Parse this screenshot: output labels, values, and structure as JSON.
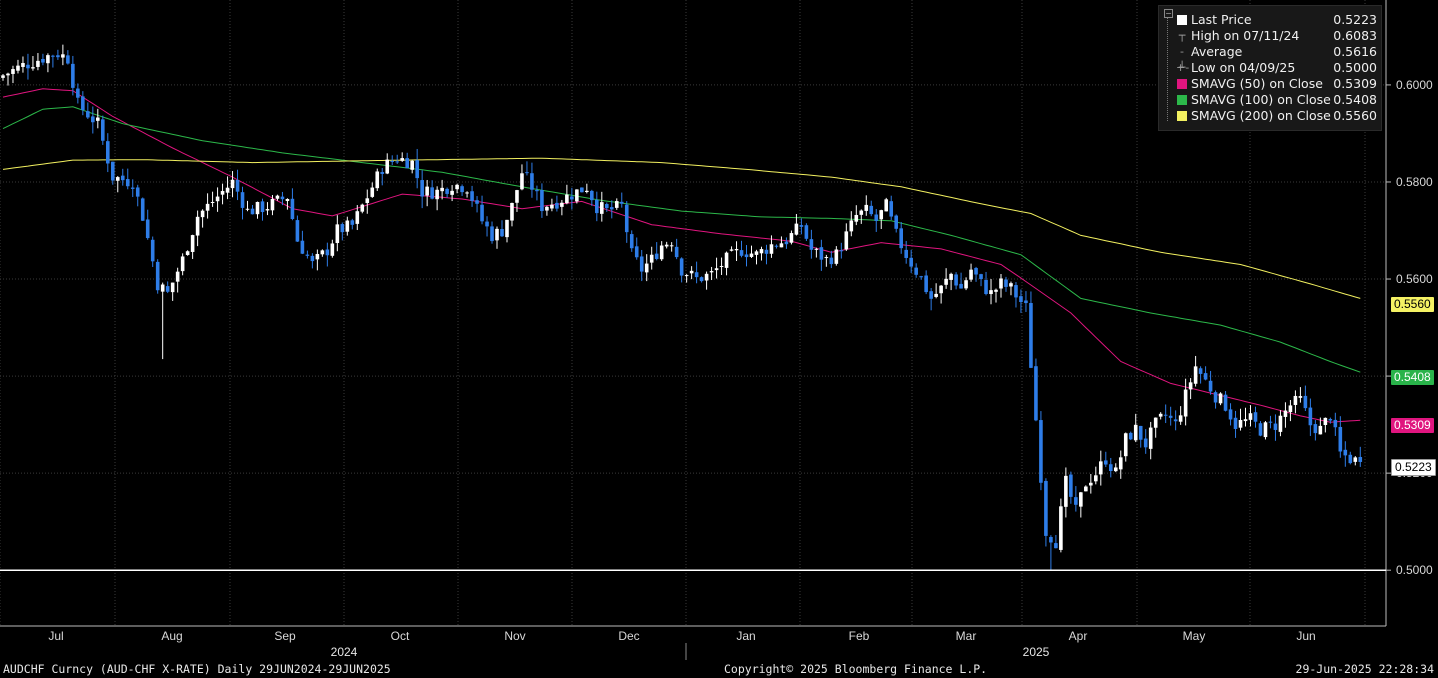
{
  "chart_data": {
    "type": "candlestick",
    "title": "AUDCHF Curncy (AUD-CHF X-RATE)",
    "period": "Daily 29JUN2024-29JUN2025",
    "ylim": [
      0.4885,
      0.6175
    ],
    "y_ticks": [
      "0.6000",
      "0.5800",
      "0.5600",
      "0.5400",
      "0.5200",
      "0.5000"
    ],
    "y_tick_values": [
      0.6,
      0.58,
      0.56,
      0.54,
      0.52,
      0.5
    ],
    "month_labels": [
      "Jul",
      "Aug",
      "Sep",
      "Oct",
      "Nov",
      "Dec",
      "Jan",
      "Feb",
      "Mar",
      "Apr",
      "May",
      "Jun"
    ],
    "year_labels": [
      "2024",
      "2025"
    ],
    "anchors": [
      {
        "t": 0,
        "v": 0.602
      },
      {
        "t": 4,
        "v": 0.604
      },
      {
        "t": 9,
        "v": 0.606
      },
      {
        "t": 11,
        "v": 0.6065
      },
      {
        "t": 13,
        "v": 0.6055
      },
      {
        "t": 15,
        "v": 0.596
      },
      {
        "t": 19,
        "v": 0.592
      },
      {
        "t": 22,
        "v": 0.581
      },
      {
        "t": 26,
        "v": 0.58
      },
      {
        "t": 28,
        "v": 0.573
      },
      {
        "t": 31,
        "v": 0.559
      },
      {
        "t": 33,
        "v": 0.557
      },
      {
        "t": 36,
        "v": 0.564
      },
      {
        "t": 39,
        "v": 0.573
      },
      {
        "t": 42,
        "v": 0.576
      },
      {
        "t": 46,
        "v": 0.58
      },
      {
        "t": 49,
        "v": 0.574
      },
      {
        "t": 53,
        "v": 0.575
      },
      {
        "t": 57,
        "v": 0.577
      },
      {
        "t": 59,
        "v": 0.568
      },
      {
        "t": 62,
        "v": 0.563
      },
      {
        "t": 65,
        "v": 0.566
      },
      {
        "t": 67,
        "v": 0.57
      },
      {
        "t": 70,
        "v": 0.571
      },
      {
        "t": 73,
        "v": 0.577
      },
      {
        "t": 76,
        "v": 0.583
      },
      {
        "t": 79,
        "v": 0.585
      },
      {
        "t": 82,
        "v": 0.584
      },
      {
        "t": 84,
        "v": 0.578
      },
      {
        "t": 87,
        "v": 0.578
      },
      {
        "t": 90,
        "v": 0.5795
      },
      {
        "t": 93,
        "v": 0.579
      },
      {
        "t": 96,
        "v": 0.572
      },
      {
        "t": 98,
        "v": 0.569
      },
      {
        "t": 100,
        "v": 0.57
      },
      {
        "t": 102,
        "v": 0.575
      },
      {
        "t": 104,
        "v": 0.582
      },
      {
        "t": 106,
        "v": 0.579
      },
      {
        "t": 108,
        "v": 0.575
      },
      {
        "t": 111,
        "v": 0.576
      },
      {
        "t": 114,
        "v": 0.5775
      },
      {
        "t": 117,
        "v": 0.579
      },
      {
        "t": 119,
        "v": 0.575
      },
      {
        "t": 121,
        "v": 0.574
      },
      {
        "t": 124,
        "v": 0.575
      },
      {
        "t": 126,
        "v": 0.565
      },
      {
        "t": 128,
        "v": 0.562
      },
      {
        "t": 130,
        "v": 0.564
      },
      {
        "t": 132,
        "v": 0.567
      },
      {
        "t": 134,
        "v": 0.568
      },
      {
        "t": 136,
        "v": 0.562
      },
      {
        "t": 139,
        "v": 0.56
      },
      {
        "t": 142,
        "v": 0.561
      },
      {
        "t": 145,
        "v": 0.564
      },
      {
        "t": 148,
        "v": 0.566
      },
      {
        "t": 151,
        "v": 0.565
      },
      {
        "t": 154,
        "v": 0.567
      },
      {
        "t": 157,
        "v": 0.568
      },
      {
        "t": 160,
        "v": 0.571
      },
      {
        "t": 162,
        "v": 0.566
      },
      {
        "t": 165,
        "v": 0.564
      },
      {
        "t": 167,
        "v": 0.565
      },
      {
        "t": 169,
        "v": 0.569
      },
      {
        "t": 171,
        "v": 0.573
      },
      {
        "t": 173,
        "v": 0.574
      },
      {
        "t": 175,
        "v": 0.572
      },
      {
        "t": 177,
        "v": 0.575
      },
      {
        "t": 179,
        "v": 0.569
      },
      {
        "t": 181,
        "v": 0.565
      },
      {
        "t": 184,
        "v": 0.56
      },
      {
        "t": 186,
        "v": 0.556
      },
      {
        "t": 188,
        "v": 0.558
      },
      {
        "t": 190,
        "v": 0.561
      },
      {
        "t": 192,
        "v": 0.558
      },
      {
        "t": 194,
        "v": 0.562
      },
      {
        "t": 196,
        "v": 0.559
      },
      {
        "t": 198,
        "v": 0.557
      },
      {
        "t": 200,
        "v": 0.559
      },
      {
        "t": 202,
        "v": 0.558
      },
      {
        "t": 205,
        "v": 0.554
      },
      {
        "t": 207,
        "v": 0.531
      },
      {
        "t": 209,
        "v": 0.508
      },
      {
        "t": 211,
        "v": 0.506
      },
      {
        "t": 213,
        "v": 0.518
      },
      {
        "t": 215,
        "v": 0.512
      },
      {
        "t": 217,
        "v": 0.518
      },
      {
        "t": 219,
        "v": 0.52
      },
      {
        "t": 221,
        "v": 0.523
      },
      {
        "t": 223,
        "v": 0.52
      },
      {
        "t": 225,
        "v": 0.527
      },
      {
        "t": 227,
        "v": 0.529
      },
      {
        "t": 229,
        "v": 0.526
      },
      {
        "t": 231,
        "v": 0.53
      },
      {
        "t": 233,
        "v": 0.532
      },
      {
        "t": 235,
        "v": 0.53
      },
      {
        "t": 237,
        "v": 0.536
      },
      {
        "t": 239,
        "v": 0.542
      },
      {
        "t": 241,
        "v": 0.539
      },
      {
        "t": 243,
        "v": 0.536
      },
      {
        "t": 245,
        "v": 0.534
      },
      {
        "t": 247,
        "v": 0.53
      },
      {
        "t": 250,
        "v": 0.531
      },
      {
        "t": 252,
        "v": 0.529
      },
      {
        "t": 255,
        "v": 0.53
      },
      {
        "t": 258,
        "v": 0.534
      },
      {
        "t": 260,
        "v": 0.535
      },
      {
        "t": 262,
        "v": 0.53
      },
      {
        "t": 264,
        "v": 0.529
      },
      {
        "t": 266,
        "v": 0.532
      },
      {
        "t": 268,
        "v": 0.524
      },
      {
        "t": 270,
        "v": 0.523
      },
      {
        "t": 272,
        "v": 0.5223
      }
    ],
    "ma_anchors": {
      "SMAVG (50)": [
        {
          "t": 0,
          "v": 0.5975
        },
        {
          "t": 8,
          "v": 0.5992
        },
        {
          "t": 14,
          "v": 0.5988
        },
        {
          "t": 22,
          "v": 0.5935
        },
        {
          "t": 34,
          "v": 0.587
        },
        {
          "t": 46,
          "v": 0.581
        },
        {
          "t": 58,
          "v": 0.5745
        },
        {
          "t": 66,
          "v": 0.573
        },
        {
          "t": 80,
          "v": 0.5775
        },
        {
          "t": 92,
          "v": 0.5765
        },
        {
          "t": 104,
          "v": 0.5745
        },
        {
          "t": 116,
          "v": 0.576
        },
        {
          "t": 130,
          "v": 0.5712
        },
        {
          "t": 144,
          "v": 0.5693
        },
        {
          "t": 158,
          "v": 0.5678
        },
        {
          "t": 166,
          "v": 0.5655
        },
        {
          "t": 176,
          "v": 0.5675
        },
        {
          "t": 188,
          "v": 0.5662
        },
        {
          "t": 200,
          "v": 0.563
        },
        {
          "t": 204,
          "v": 0.5602
        },
        {
          "t": 214,
          "v": 0.553
        },
        {
          "t": 224,
          "v": 0.543
        },
        {
          "t": 234,
          "v": 0.5385
        },
        {
          "t": 244,
          "v": 0.536
        },
        {
          "t": 252,
          "v": 0.534
        },
        {
          "t": 260,
          "v": 0.5318
        },
        {
          "t": 266,
          "v": 0.5305
        },
        {
          "t": 272,
          "v": 0.5309
        }
      ],
      "SMAVG (100)": [
        {
          "t": 0,
          "v": 0.591
        },
        {
          "t": 8,
          "v": 0.595
        },
        {
          "t": 14,
          "v": 0.5955
        },
        {
          "t": 24,
          "v": 0.592
        },
        {
          "t": 40,
          "v": 0.5885
        },
        {
          "t": 56,
          "v": 0.586
        },
        {
          "t": 72,
          "v": 0.584
        },
        {
          "t": 88,
          "v": 0.582
        },
        {
          "t": 104,
          "v": 0.579
        },
        {
          "t": 120,
          "v": 0.5762
        },
        {
          "t": 136,
          "v": 0.574
        },
        {
          "t": 152,
          "v": 0.5728
        },
        {
          "t": 166,
          "v": 0.5725
        },
        {
          "t": 178,
          "v": 0.572
        },
        {
          "t": 190,
          "v": 0.569
        },
        {
          "t": 204,
          "v": 0.565
        },
        {
          "t": 216,
          "v": 0.556
        },
        {
          "t": 230,
          "v": 0.553
        },
        {
          "t": 244,
          "v": 0.5505
        },
        {
          "t": 256,
          "v": 0.547
        },
        {
          "t": 266,
          "v": 0.543
        },
        {
          "t": 272,
          "v": 0.5408
        }
      ],
      "SMAVG (200)": [
        {
          "t": 0,
          "v": 0.5826
        },
        {
          "t": 14,
          "v": 0.5845
        },
        {
          "t": 28,
          "v": 0.5846
        },
        {
          "t": 50,
          "v": 0.584
        },
        {
          "t": 80,
          "v": 0.5845
        },
        {
          "t": 108,
          "v": 0.5849
        },
        {
          "t": 132,
          "v": 0.584
        },
        {
          "t": 150,
          "v": 0.5825
        },
        {
          "t": 166,
          "v": 0.581
        },
        {
          "t": 180,
          "v": 0.579
        },
        {
          "t": 196,
          "v": 0.5755
        },
        {
          "t": 206,
          "v": 0.5735
        },
        {
          "t": 216,
          "v": 0.569
        },
        {
          "t": 232,
          "v": 0.5655
        },
        {
          "t": 248,
          "v": 0.563
        },
        {
          "t": 262,
          "v": 0.559
        },
        {
          "t": 272,
          "v": 0.556
        }
      ]
    },
    "series": [
      {
        "name": "Last Price",
        "value": "0.5223",
        "color": "#ffffff"
      },
      {
        "name": "High on 07/11/24",
        "value": "0.6083",
        "color": "#9a9a9a"
      },
      {
        "name": "Average",
        "value": "0.5616",
        "color": "#9a9a9a"
      },
      {
        "name": "Low on 04/09/25",
        "value": "0.5000",
        "color": "#9a9a9a"
      },
      {
        "name": "SMAVG (50)  on Close",
        "value": "0.5309",
        "color": "#e0157f"
      },
      {
        "name": "SMAVG (100)  on Close",
        "value": "0.5408",
        "color": "#2cb84a"
      },
      {
        "name": "SMAVG (200)  on Close",
        "value": "0.5560",
        "color": "#f2f060"
      }
    ],
    "price_tags": [
      {
        "value": "0.5560",
        "bg": "#f5f264",
        "fg": "#000000"
      },
      {
        "value": "0.5408",
        "bg": "#29b34a",
        "fg": "#ffffff"
      },
      {
        "value": "0.5309",
        "bg": "#e0157f",
        "fg": "#ffffff"
      },
      {
        "value": "0.5223",
        "bg": "#ffffff",
        "fg": "#000000"
      }
    ],
    "low_line_value": 0.5,
    "colors": {
      "up": "#ffffff",
      "down": "#2e7de8",
      "grid": "#3a3a3a"
    }
  },
  "footer": {
    "left": "AUDCHF Curncy (AUD-CHF X-RATE)  Daily 29JUN2024-29JUN2025",
    "center": "Copyright© 2025 Bloomberg Finance L.P.",
    "right": "29-Jun-2025 22:28:34"
  }
}
